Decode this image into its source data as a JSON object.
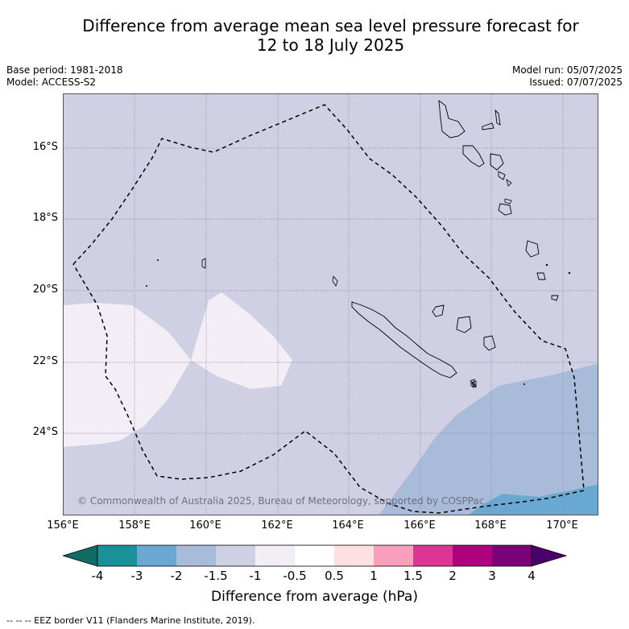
{
  "title_line1": "Difference from average mean sea level pressure forecast for",
  "title_line2": "12 to 18 July 2025",
  "base_period": "Base period: 1981-2018",
  "model": "Model: ACCESS-S2",
  "model_run": "Model run: 05/07/2025",
  "issued": "Issued: 07/07/2025",
  "copyright": "© Commonwealth of Australia 2025, Bureau of Meteorology, supported by COSPPac",
  "lat_labels": [
    "16°S",
    "18°S",
    "20°S",
    "22°S",
    "24°S"
  ],
  "lon_labels": [
    "156°E",
    "158°E",
    "160°E",
    "162°E",
    "164°E",
    "166°E",
    "168°E",
    "170°E"
  ],
  "colorbar": {
    "title": "Difference from average (hPa)",
    "ticks": [
      "-4",
      "-3",
      "-2",
      "-1.5",
      "-1",
      "-0.5",
      "0.5",
      "1",
      "1.5",
      "2",
      "3",
      "4"
    ],
    "colors": [
      "#0f6b63",
      "#1a9199",
      "#69a9d1",
      "#a8bbd9",
      "#cfd0e4",
      "#f3eef6",
      "#ffffff",
      "#fde0df",
      "#f99fbc",
      "#dc3596",
      "#ae017e",
      "#7a0177",
      "#49006a"
    ]
  },
  "footnote": "--  --  -- EEZ border V11 (Flanders Marine Institute, 2019).",
  "map_data": {
    "extent": {
      "lon_min": 156,
      "lon_max": 171,
      "lat_min": -26.0,
      "lat_max": -14.5
    },
    "background_category": "-1.5 to -1",
    "regions": [
      {
        "category": "-1 to -0.5",
        "color": "#f3eef6",
        "location": "west of 160°E, 20.5°S–24.5°S"
      },
      {
        "category": "-1 to -0.5",
        "color": "#f3eef6",
        "location": "160°E–162.5°E, 20°S–22.8°S"
      },
      {
        "category": "-2 to -1.5",
        "color": "#a8bbd9",
        "location": "south-east, 165°E–171°E, 22.5°S–26°S"
      },
      {
        "category": "-3 to -2",
        "color": "#69a9d1",
        "location": "far south-east corner, 167.5°E–171°E, south of 25°S"
      }
    ],
    "features": [
      "EEZ border (dashed)",
      "New Caledonia coastline",
      "Loyalty Islands",
      "Vanuatu coastline"
    ]
  }
}
